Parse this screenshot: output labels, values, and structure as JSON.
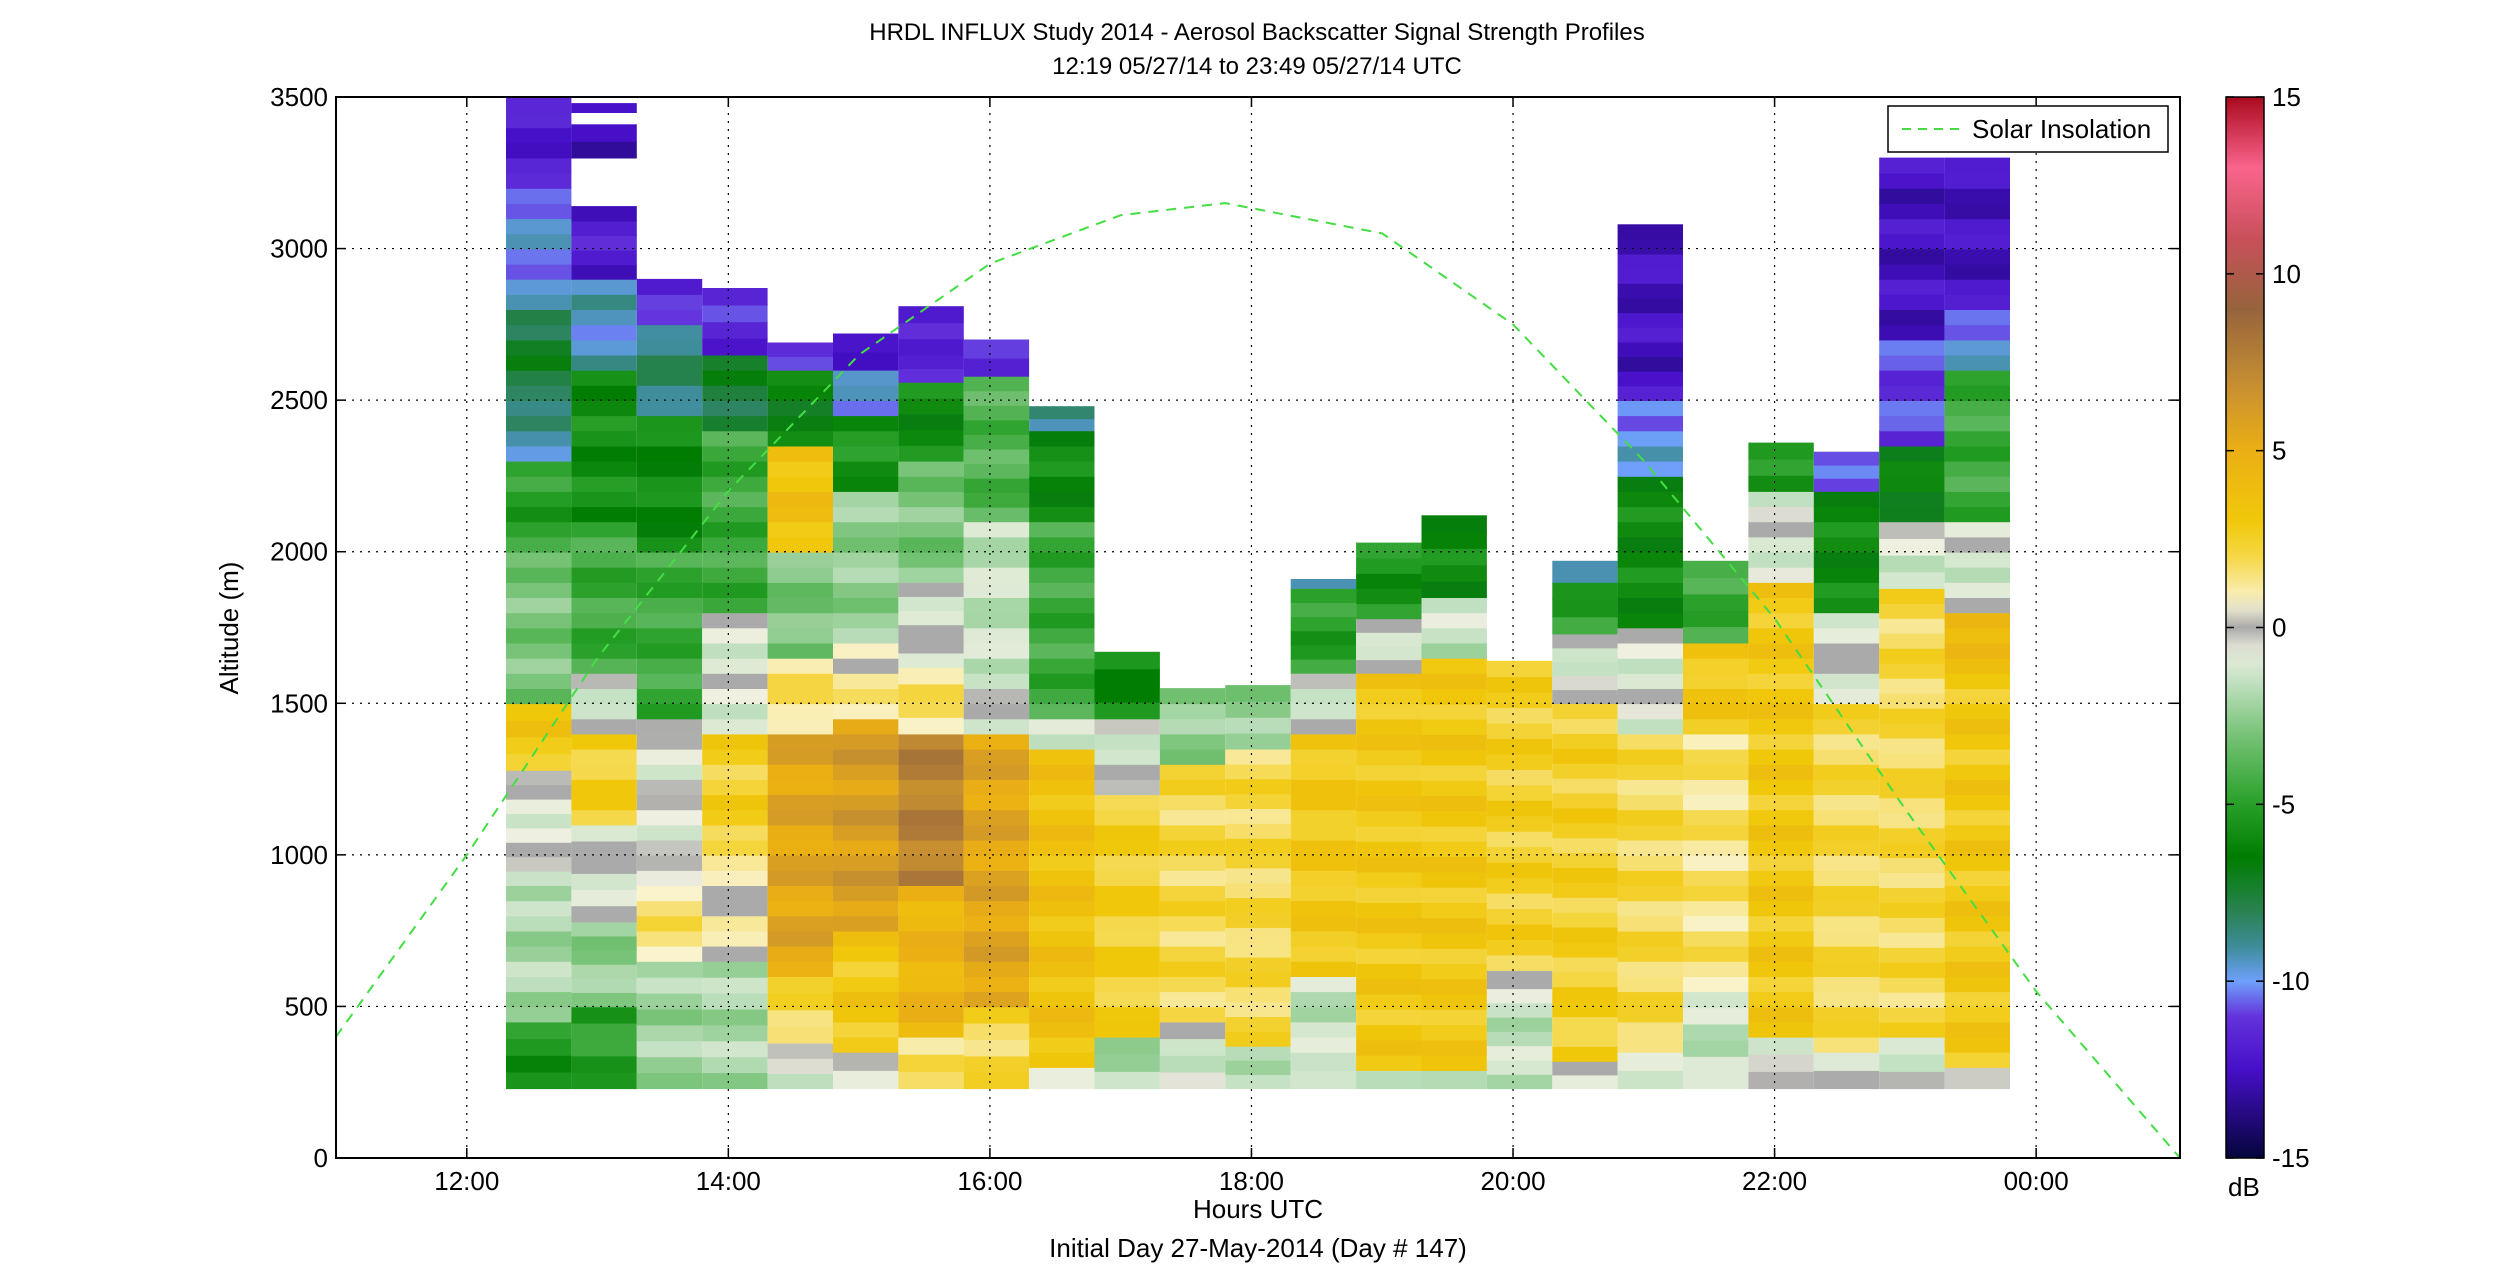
{
  "chart_data": {
    "type": "heatmap",
    "title": "HRDL INFLUX Study 2014 - Aerosol Backscatter Signal Strength Profiles",
    "subtitle": "12:19 05/27/14 to 23:49 05/27/14  UTC",
    "xlabel": "Hours UTC",
    "xlabel2": "Initial Day 27-May-2014 (Day # 147)",
    "ylabel": "Altitude (m)",
    "xlim": [
      11.0,
      25.1
    ],
    "ylim": [
      0,
      3500
    ],
    "xticks": [
      12,
      14,
      16,
      18,
      20,
      22,
      24
    ],
    "xtick_labels": [
      "12:00",
      "14:00",
      "16:00",
      "18:00",
      "20:00",
      "22:00",
      "00:00"
    ],
    "yticks": [
      0,
      500,
      1000,
      1500,
      2000,
      2500,
      3000,
      3500
    ],
    "ytick_labels": [
      "0",
      "500",
      "1000",
      "1500",
      "2000",
      "2500",
      "3000",
      "3500"
    ],
    "grid": true,
    "legend": {
      "position": "top-right",
      "entries": [
        "Solar Insolation"
      ]
    },
    "colorbar": {
      "min": -15,
      "max": 15,
      "unit": "dB",
      "ticks": [
        -15,
        -10,
        -5,
        0,
        5,
        10,
        15
      ],
      "tick_labels": [
        "-15",
        "-10",
        "-5",
        "0",
        "5",
        "10",
        "15"
      ]
    },
    "solar_curve": {
      "name": "Solar Insolation",
      "color": "#44dd44",
      "x": [
        11.0,
        12.0,
        13.0,
        14.0,
        15.0,
        16.0,
        17.0,
        17.8,
        19.0,
        20.0,
        21.0,
        22.0,
        23.0,
        24.0,
        25.1
      ],
      "y": [
        400,
        1000,
        1650,
        2200,
        2650,
        2950,
        3110,
        3150,
        3050,
        2750,
        2300,
        1780,
        1150,
        550,
        0
      ]
    },
    "profiles": [
      {
        "t": 12.55,
        "segments": [
          [
            230,
            450,
            -5.5
          ],
          [
            450,
            900,
            -2.0
          ],
          [
            900,
            1280,
            -0.6
          ],
          [
            1280,
            1500,
            3
          ],
          [
            1500,
            2000,
            -3.0
          ],
          [
            2000,
            2300,
            -5.0
          ],
          [
            2300,
            2500,
            -9.0
          ],
          [
            2500,
            2800,
            -7.5
          ],
          [
            2800,
            3200,
            -10.0
          ],
          [
            3200,
            3500,
            -12.0
          ]
        ]
      },
      {
        "t": 13.05,
        "segments": [
          [
            230,
            500,
            -5.0
          ],
          [
            500,
            780,
            -2.5
          ],
          [
            780,
            1100,
            -0.5
          ],
          [
            1100,
            1400,
            2.5
          ],
          [
            1400,
            1600,
            -0.8
          ],
          [
            1600,
            2100,
            -4.5
          ],
          [
            2100,
            2600,
            -5.8
          ],
          [
            2600,
            2900,
            -9.5
          ],
          [
            2900,
            3140,
            -12.0
          ],
          [
            3300,
            3410,
            -12.5
          ],
          [
            3450,
            3480,
            -12.5
          ]
        ]
      },
      {
        "t": 13.55,
        "segments": [
          [
            230,
            650,
            -2.2
          ],
          [
            650,
            900,
            1.5
          ],
          [
            900,
            1450,
            -0.5
          ],
          [
            1450,
            2000,
            -4.5
          ],
          [
            2000,
            2450,
            -6.0
          ],
          [
            2450,
            2750,
            -8.5
          ],
          [
            2750,
            2900,
            -11.5
          ]
        ]
      },
      {
        "t": 14.05,
        "segments": [
          [
            230,
            650,
            -2.0
          ],
          [
            650,
            1000,
            0.5
          ],
          [
            1000,
            1400,
            2.5
          ],
          [
            1400,
            1800,
            -0.8
          ],
          [
            1800,
            2400,
            -4.5
          ],
          [
            2400,
            2650,
            -7.5
          ],
          [
            2650,
            2870,
            -11.5
          ]
        ]
      },
      {
        "t": 14.55,
        "segments": [
          [
            230,
            380,
            -1.0
          ],
          [
            380,
            600,
            2.0
          ],
          [
            600,
            1400,
            5.5
          ],
          [
            1400,
            1650,
            1.5
          ],
          [
            1650,
            2000,
            -3.0
          ],
          [
            2000,
            2350,
            3.5
          ],
          [
            2350,
            2600,
            -6.5
          ],
          [
            2600,
            2690,
            -10.5
          ]
        ]
      },
      {
        "t": 15.05,
        "segments": [
          [
            230,
            350,
            -0.5
          ],
          [
            350,
            750,
            3.0
          ],
          [
            750,
            1450,
            6.0
          ],
          [
            1450,
            1700,
            1.0
          ],
          [
            1700,
            2200,
            -2.5
          ],
          [
            2200,
            2450,
            -5.5
          ],
          [
            2450,
            2600,
            -10.0
          ],
          [
            2600,
            2720,
            -12.0
          ]
        ]
      },
      {
        "t": 15.55,
        "segments": [
          [
            230,
            400,
            1.5
          ],
          [
            400,
            900,
            4.5
          ],
          [
            900,
            1400,
            7.5
          ],
          [
            1400,
            1620,
            1.5
          ],
          [
            1620,
            1900,
            -0.5
          ],
          [
            1900,
            2300,
            -3.0
          ],
          [
            2300,
            2560,
            -6.0
          ],
          [
            2560,
            2650,
            -11.0
          ],
          [
            2650,
            2810,
            -12.0
          ]
        ]
      },
      {
        "t": 16.05,
        "segments": [
          [
            230,
            500,
            2.0
          ],
          [
            500,
            1400,
            5.5
          ],
          [
            1400,
            1600,
            -0.8
          ],
          [
            1600,
            2100,
            -1.5
          ],
          [
            2100,
            2580,
            -4.0
          ],
          [
            2580,
            2700,
            -11.0
          ]
        ]
      },
      {
        "t": 16.55,
        "segments": [
          [
            230,
            300,
            -1.5
          ],
          [
            300,
            1350,
            3.5
          ],
          [
            1350,
            1450,
            -0.8
          ],
          [
            1450,
            2100,
            -4.5
          ],
          [
            2100,
            2400,
            -6.0
          ],
          [
            2400,
            2480,
            -9.0
          ]
        ]
      },
      {
        "t": 17.05,
        "segments": [
          [
            230,
            400,
            -2.0
          ],
          [
            400,
            1200,
            2.5
          ],
          [
            1200,
            1450,
            -0.8
          ],
          [
            1450,
            1670,
            -6.0
          ]
        ]
      },
      {
        "t": 17.55,
        "segments": [
          [
            230,
            450,
            -1.0
          ],
          [
            450,
            1300,
            2.0
          ],
          [
            1300,
            1550,
            -2.5
          ]
        ]
      },
      {
        "t": 18.05,
        "segments": [
          [
            230,
            370,
            -1.5
          ],
          [
            370,
            1350,
            2.0
          ],
          [
            1350,
            1560,
            -2.5
          ]
        ]
      },
      {
        "t": 18.55,
        "segments": [
          [
            230,
            350,
            -0.8
          ],
          [
            350,
            600,
            -1.5
          ],
          [
            600,
            1400,
            3.0
          ],
          [
            1400,
            1600,
            -0.8
          ],
          [
            1600,
            1880,
            -5.0
          ],
          [
            1880,
            1910,
            -8.5
          ]
        ]
      },
      {
        "t": 19.05,
        "segments": [
          [
            230,
            290,
            -1.0
          ],
          [
            290,
            1600,
            3.0
          ],
          [
            1600,
            1780,
            -0.5
          ],
          [
            1780,
            2030,
            -5.5
          ]
        ]
      },
      {
        "t": 19.55,
        "segments": [
          [
            230,
            290,
            -1.0
          ],
          [
            290,
            1650,
            3.0
          ],
          [
            1650,
            1850,
            -1.5
          ],
          [
            1850,
            2120,
            -6.0
          ]
        ]
      },
      {
        "t": 20.05,
        "segments": [
          [
            230,
            560,
            -1.5
          ],
          [
            560,
            620,
            -0.3
          ],
          [
            620,
            1640,
            2.5
          ]
        ]
      },
      {
        "t": 20.55,
        "segments": [
          [
            230,
            320,
            -0.5
          ],
          [
            320,
            1500,
            2.5
          ],
          [
            1500,
            1730,
            -0.8
          ],
          [
            1730,
            1900,
            -5.0
          ],
          [
            1900,
            1970,
            -10.0
          ]
        ]
      },
      {
        "t": 21.05,
        "segments": [
          [
            230,
            350,
            -1.5
          ],
          [
            350,
            1400,
            2.0
          ],
          [
            1400,
            1750,
            -0.8
          ],
          [
            1750,
            2250,
            -6.0
          ],
          [
            2250,
            2500,
            -10.0
          ],
          [
            2500,
            3080,
            -12.5
          ]
        ]
      },
      {
        "t": 21.55,
        "segments": [
          [
            230,
            550,
            -1.5
          ],
          [
            550,
            1400,
            1.5
          ],
          [
            1400,
            1700,
            3.0
          ],
          [
            1700,
            1970,
            -4.5
          ]
        ]
      },
      {
        "t": 22.05,
        "segments": [
          [
            230,
            400,
            -0.5
          ],
          [
            400,
            1900,
            3.0
          ],
          [
            1900,
            2200,
            -0.8
          ],
          [
            2200,
            2360,
            -5.5
          ]
        ]
      },
      {
        "t": 22.55,
        "segments": [
          [
            230,
            350,
            -0.5
          ],
          [
            350,
            1500,
            2.0
          ],
          [
            1500,
            1800,
            -0.5
          ],
          [
            1800,
            2200,
            -6.0
          ],
          [
            2200,
            2330,
            -11.0
          ]
        ]
      },
      {
        "t": 23.05,
        "segments": [
          [
            230,
            400,
            -0.8
          ],
          [
            400,
            1880,
            2.0
          ],
          [
            1880,
            2100,
            -1.0
          ],
          [
            2100,
            2350,
            -6.5
          ],
          [
            2350,
            2700,
            -11.0
          ],
          [
            2700,
            3300,
            -12.5
          ]
        ]
      },
      {
        "t": 23.55,
        "segments": [
          [
            230,
            300,
            -0.5
          ],
          [
            300,
            1650,
            3.0
          ],
          [
            1650,
            1800,
            4.5
          ],
          [
            1800,
            2100,
            -1.0
          ],
          [
            2100,
            2600,
            -4.5
          ],
          [
            2600,
            2800,
            -10.0
          ],
          [
            2800,
            3300,
            -12.5
          ]
        ]
      }
    ]
  }
}
